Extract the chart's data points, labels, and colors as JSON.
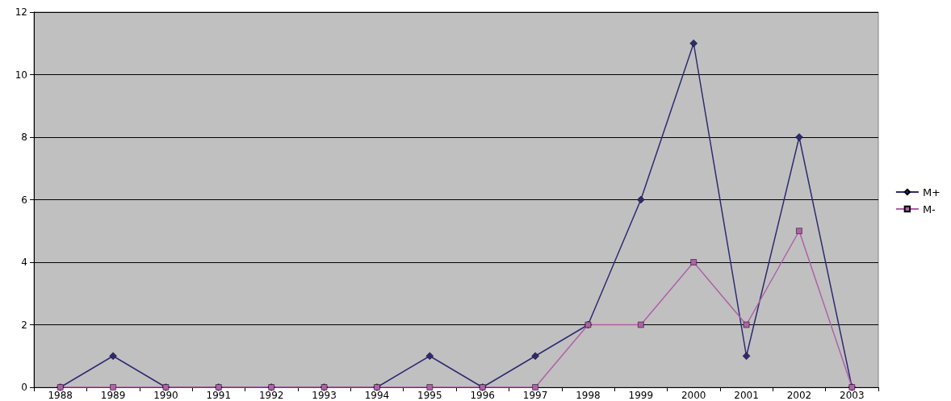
{
  "chart_data": {
    "type": "line",
    "categories": [
      "1988",
      "1989",
      "1990",
      "1991",
      "1992",
      "1993",
      "1994",
      "1995",
      "1996",
      "1997",
      "1998",
      "1999",
      "2000",
      "2001",
      "2002",
      "2003"
    ],
    "series": [
      {
        "name": "M+",
        "color": "#2e2a72",
        "marker": "diamond",
        "values": [
          0,
          1,
          0,
          0,
          0,
          0,
          0,
          1,
          0,
          1,
          2,
          6,
          11,
          1,
          8,
          0
        ]
      },
      {
        "name": "M-",
        "color": "#b060a8",
        "marker": "square",
        "values": [
          0,
          0,
          0,
          0,
          0,
          0,
          0,
          0,
          0,
          0,
          2,
          2,
          4,
          2,
          5,
          0
        ]
      }
    ],
    "ylim": [
      0,
      12
    ],
    "yticks": [
      0,
      2,
      4,
      6,
      8,
      10,
      12
    ],
    "grid": "y",
    "legend": "right"
  }
}
